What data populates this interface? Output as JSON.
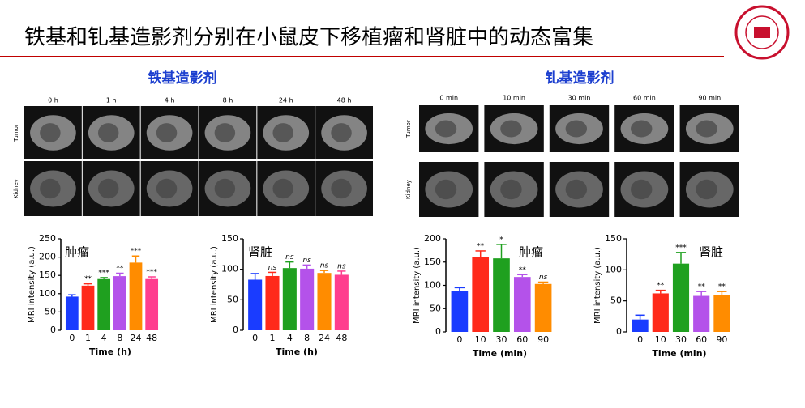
{
  "header": {
    "title": "铁基和钆基造影剂分别在小鼠皮下移植瘤和肾脏中的动态富集"
  },
  "panels": [
    {
      "heading": "铁基造影剂",
      "columns": [
        "0 h",
        "1 h",
        "4 h",
        "8 h",
        "24 h",
        "48 h"
      ],
      "rows": [
        "Tumor",
        "Kidney"
      ]
    },
    {
      "heading": "钆基造影剂",
      "columns": [
        "0 min",
        "10 min",
        "30 min",
        "60 min",
        "90 min"
      ],
      "rows": [
        "Tumor",
        "Kidney"
      ]
    }
  ],
  "chart_data": [
    {
      "type": "bar",
      "label": "肿瘤",
      "y_label": "MRI intensity (a.u.)",
      "x_label": "Time (h)",
      "categories": [
        "0",
        "1",
        "4",
        "8",
        "24",
        "48"
      ],
      "values": [
        92,
        122,
        140,
        148,
        185,
        140
      ],
      "errors": [
        5,
        5,
        4,
        8,
        18,
        6
      ],
      "annotations": [
        null,
        "**",
        "***",
        "**",
        "***",
        "***"
      ],
      "colors": [
        "#1a3cff",
        "#ff2a1a",
        "#1fa01f",
        "#b452ea",
        "#ff8c00",
        "#ff3d8e"
      ],
      "ylim": [
        0,
        250
      ],
      "yticks": [
        0,
        50,
        100,
        150,
        200,
        250
      ]
    },
    {
      "type": "bar",
      "label": "肾脏",
      "y_label": "MRI intensity (a.u.)",
      "x_label": "Time (h)",
      "categories": [
        "0",
        "1",
        "4",
        "8",
        "24",
        "48"
      ],
      "values": [
        83,
        89,
        102,
        101,
        94,
        91
      ],
      "errors": [
        10,
        6,
        10,
        6,
        4,
        6
      ],
      "annotations": [
        null,
        "ns",
        "ns",
        "ns",
        "ns",
        "ns"
      ],
      "colors": [
        "#1a3cff",
        "#ff2a1a",
        "#1fa01f",
        "#b452ea",
        "#ff8c00",
        "#ff3d8e"
      ],
      "ylim": [
        0,
        150
      ],
      "yticks": [
        0,
        50,
        100,
        150
      ]
    },
    {
      "type": "bar",
      "label": "肿瘤",
      "y_label": "MRI intensity (a.u.)",
      "x_label": "Time (min)",
      "categories": [
        "0",
        "10",
        "30",
        "60",
        "90"
      ],
      "values": [
        88,
        160,
        158,
        118,
        103
      ],
      "errors": [
        7,
        14,
        30,
        5,
        4
      ],
      "annotations": [
        null,
        "**",
        "*",
        "**",
        "ns"
      ],
      "colors": [
        "#1a3cff",
        "#ff2a1a",
        "#1fa01f",
        "#b452ea",
        "#ff8c00"
      ],
      "ylim": [
        0,
        200
      ],
      "yticks": [
        0,
        50,
        100,
        150,
        200
      ]
    },
    {
      "type": "bar",
      "label": "肾脏",
      "y_label": "MRI intensity (a.u.)",
      "x_label": "Time (min)",
      "categories": [
        "0",
        "10",
        "30",
        "60",
        "90"
      ],
      "values": [
        20,
        62,
        110,
        58,
        60
      ],
      "errors": [
        7,
        5,
        18,
        7,
        5
      ],
      "annotations": [
        null,
        "**",
        "***",
        "**",
        "**"
      ],
      "colors": [
        "#1a3cff",
        "#ff2a1a",
        "#1fa01f",
        "#b452ea",
        "#ff8c00"
      ],
      "ylim": [
        0,
        150
      ],
      "yticks": [
        0,
        50,
        100,
        150
      ]
    }
  ]
}
